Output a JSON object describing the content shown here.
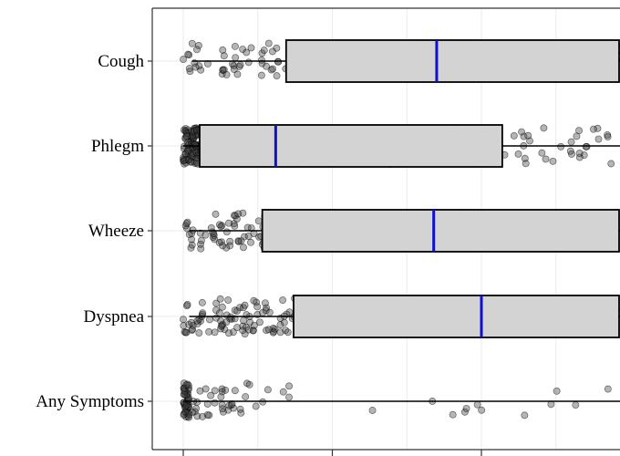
{
  "chart_data": {
    "type": "box",
    "orientation": "horizontal",
    "categories": [
      "Cough",
      "Phlegm",
      "Wheeze",
      "Dyspnea",
      "Any Symptoms"
    ],
    "xlim": [
      -10,
      148
    ],
    "x_ticks": [
      0,
      50,
      100
    ],
    "grid": true,
    "jitter_points": true,
    "boxes": [
      {
        "category": "Cough",
        "whisker_low": 3,
        "q1": 34.5,
        "median": 85,
        "q3": 147,
        "whisker_high": 160,
        "n_points": 320,
        "spread_max": 147
      },
      {
        "category": "Phlegm",
        "whisker_low": 0,
        "q1": 5.5,
        "median": 31,
        "q3": 107,
        "whisker_high": 160,
        "n_points": 290,
        "spread_max": 145
      },
      {
        "category": "Wheeze",
        "whisker_low": 2,
        "q1": 26.5,
        "median": 84,
        "q3": 150,
        "whisker_high": 160,
        "n_points": 310,
        "spread_max": 147
      },
      {
        "category": "Dyspnea",
        "whisker_low": 2,
        "q1": 37,
        "median": 100,
        "q3": 150,
        "whisker_high": 160,
        "n_points": 310,
        "spread_max": 147
      },
      {
        "category": "Any Symptoms",
        "whisker_low": 0,
        "q1": 0,
        "median": 0,
        "q3": 0,
        "whisker_high": 160,
        "n_points": 95,
        "spread_max": 145
      }
    ],
    "colors": {
      "box_fill": "#d3d3d3",
      "box_border": "#000000",
      "median": "#1010d0",
      "points": "#3c3c3c",
      "grid": "#ebebeb"
    }
  }
}
